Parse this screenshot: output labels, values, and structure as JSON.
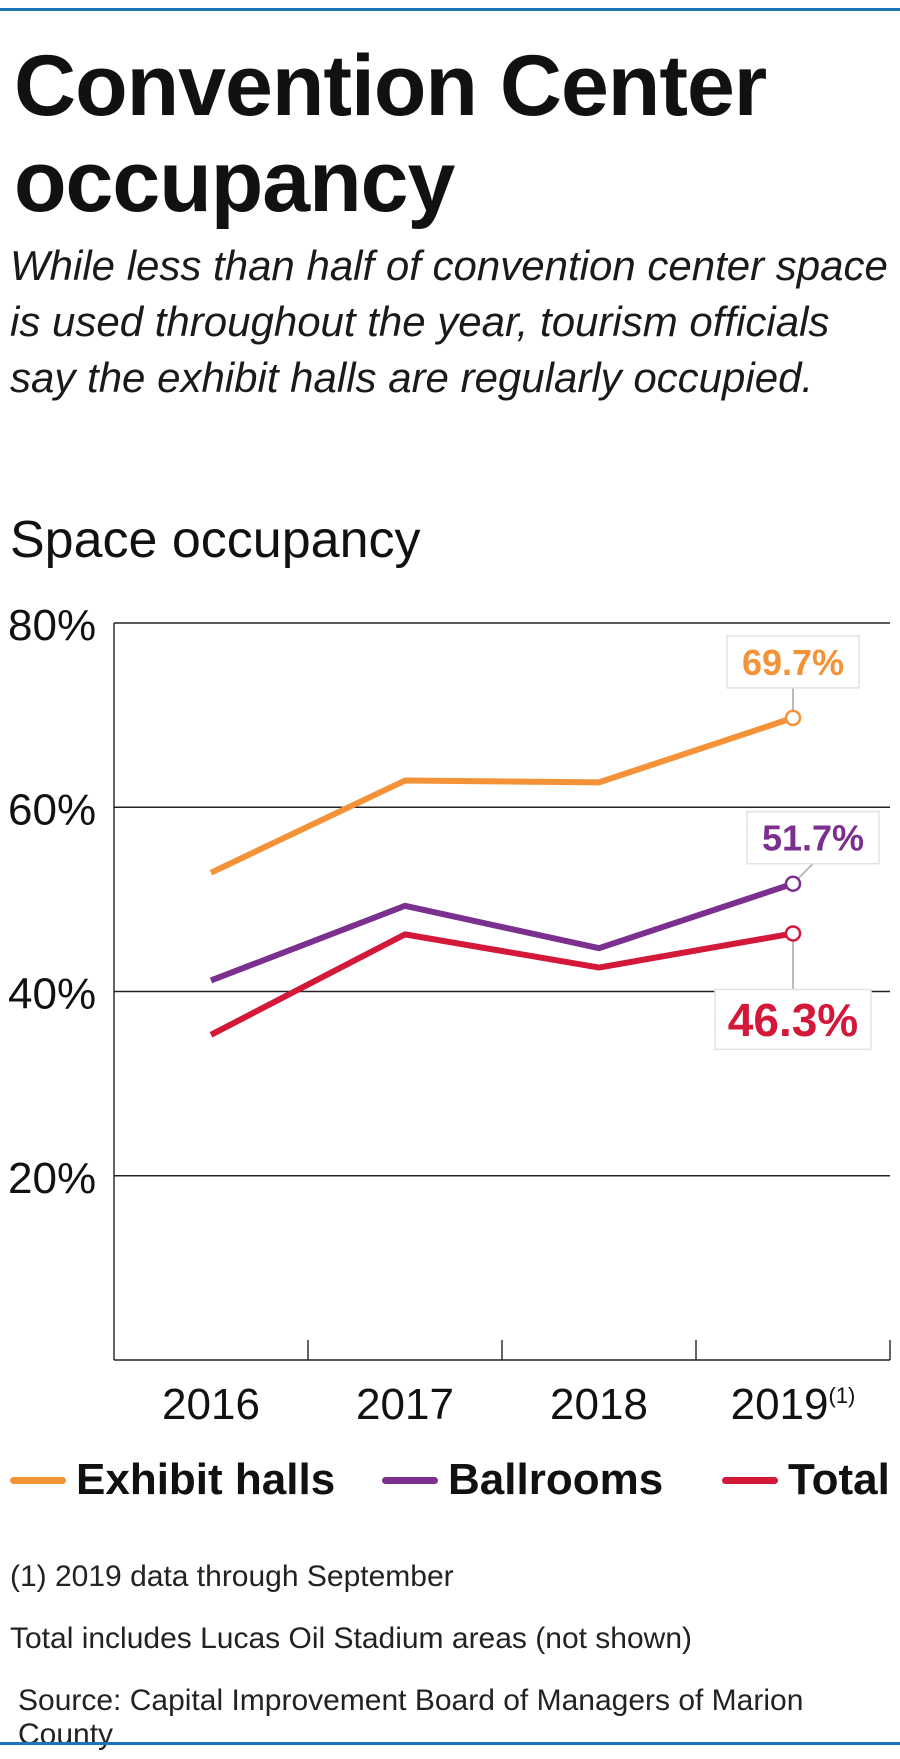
{
  "header": {
    "title": "Convention Center occupancy",
    "subtitle": "While less than half of convention center space is used throughout the year, tourism officials say the exhibit halls are regularly occupied."
  },
  "chart_data": {
    "type": "line",
    "title": "Space occupancy",
    "categories": [
      "2016",
      "2017",
      "2018",
      "2019"
    ],
    "category_footnote": "(1)",
    "y_ticks": [
      "80%",
      "60%",
      "40%",
      "20%"
    ],
    "ylim": [
      0,
      80
    ],
    "grid": true,
    "series": [
      {
        "name": "Exhibit halls",
        "color": "#f39237",
        "values": [
          52.9,
          62.9,
          62.7,
          69.7
        ],
        "end_label": "69.7%"
      },
      {
        "name": "Ballrooms",
        "color": "#7b2f8e",
        "values": [
          41.2,
          49.3,
          44.7,
          51.7
        ],
        "end_label": "51.7%"
      },
      {
        "name": "Total",
        "color": "#d3183a",
        "values": [
          35.3,
          46.2,
          42.6,
          46.3
        ],
        "end_label": "46.3%"
      }
    ],
    "legend_position": "bottom"
  },
  "notes": {
    "footnote": "(1) 2019 data through September",
    "total_note": "Total includes Lucas Oil Stadium areas (not shown)",
    "source": "Source: Capital Improvement Board of Managers of Marion County"
  }
}
